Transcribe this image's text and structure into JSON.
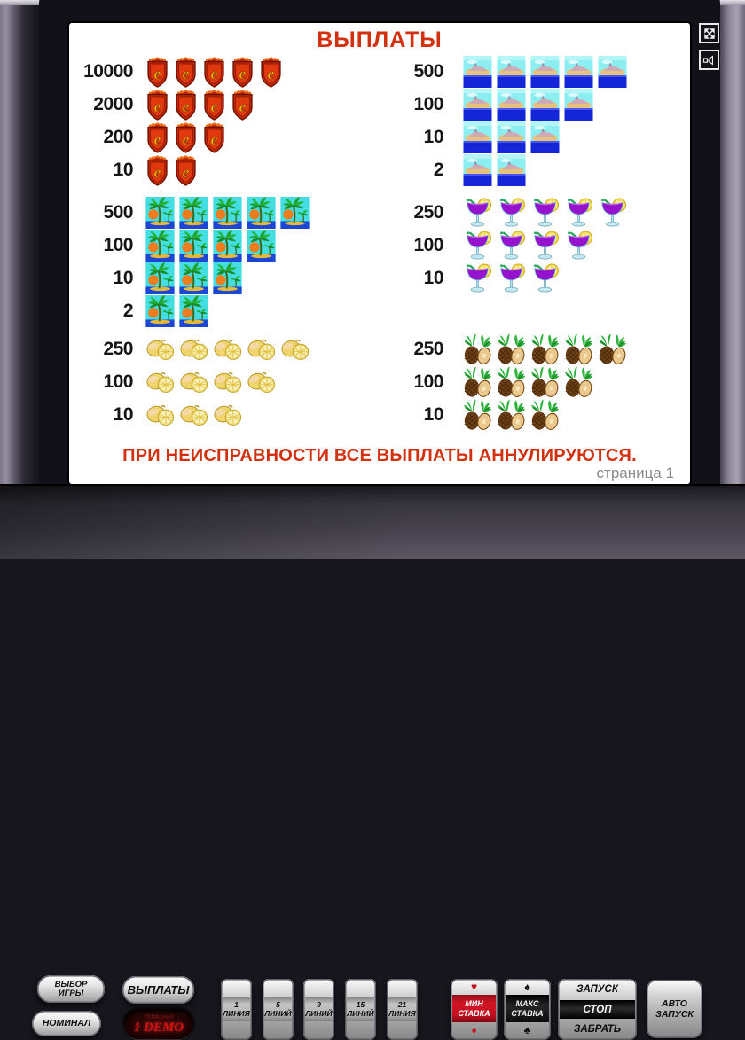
{
  "screen": {
    "title": "ВЫПЛАТЫ",
    "warning": "ПРИ НЕИСПРАВНОСТИ ВСЕ ВЫПЛАТЫ АННУЛИРУЮТСЯ.",
    "page": "страница 1"
  },
  "colors": {
    "accent_red": "#d23110",
    "display_red": "#d01212",
    "min_bet_band_red": "#c41220",
    "max_bet_band_black": "#111111"
  },
  "paytable": {
    "groups": [
      {
        "symbol": "badge",
        "symbol_desc": "red shield crest with letter e",
        "rows": [
          {
            "value": "10000",
            "count": 5
          },
          {
            "value": "2000",
            "count": 4
          },
          {
            "value": "200",
            "count": 3
          },
          {
            "value": "10",
            "count": 2
          }
        ]
      },
      {
        "symbol": "island",
        "symbol_desc": "island and sea picture",
        "rows": [
          {
            "value": "500",
            "count": 5
          },
          {
            "value": "100",
            "count": 4
          },
          {
            "value": "10",
            "count": 3
          },
          {
            "value": "2",
            "count": 2
          }
        ]
      },
      {
        "symbol": "palm",
        "symbol_desc": "palm trees with sun picture",
        "rows": [
          {
            "value": "500",
            "count": 5
          },
          {
            "value": "100",
            "count": 4
          },
          {
            "value": "10",
            "count": 3
          },
          {
            "value": "2",
            "count": 2
          }
        ]
      },
      {
        "symbol": "cocktail",
        "symbol_desc": "purple cocktail with lemon slice",
        "rows": [
          {
            "value": "250",
            "count": 5
          },
          {
            "value": "100",
            "count": 4
          },
          {
            "value": "10",
            "count": 3
          }
        ]
      },
      {
        "symbol": "lemon",
        "symbol_desc": "cut lemons",
        "rows": [
          {
            "value": "250",
            "count": 5
          },
          {
            "value": "100",
            "count": 4
          },
          {
            "value": "10",
            "count": 3
          }
        ]
      },
      {
        "symbol": "pineapple",
        "symbol_desc": "pineapples",
        "rows": [
          {
            "value": "250",
            "count": 5
          },
          {
            "value": "100",
            "count": 4
          },
          {
            "value": "10",
            "count": 3
          }
        ]
      }
    ]
  },
  "window_icons": [
    {
      "name": "fullscreen-toggle",
      "glyph": "expand-arrows"
    },
    {
      "name": "sound-toggle",
      "glyph": "speaker"
    }
  ],
  "panel": {
    "game_select": {
      "line1": "ВЫБОР",
      "line2": "ИГРЫ"
    },
    "denomination": {
      "label": "НОМИНАЛ"
    },
    "payouts": {
      "label": "ВЫПЛАТЫ"
    },
    "display": {
      "label": "Номинал",
      "value": "1 DEMO"
    },
    "lines": [
      {
        "number": "1",
        "word": "ЛИНИЯ"
      },
      {
        "number": "5",
        "word": "ЛИНИЙ"
      },
      {
        "number": "9",
        "word": "ЛИНИЙ"
      },
      {
        "number": "15",
        "word": "ЛИНИЙ"
      },
      {
        "number": "21",
        "word": "ЛИНИЯ"
      }
    ],
    "min_bet": {
      "line1": "МИН",
      "line2": "СТАВКА",
      "suit_top": "♥",
      "suit_bottom": "♦"
    },
    "max_bet": {
      "line1": "МАКС",
      "line2": "СТАВКА",
      "suit_top": "♠",
      "suit_bottom": "♣"
    },
    "start": {
      "line1": "ЗАПУСК",
      "line2": "СТОП",
      "line3": "ЗАБРАТЬ"
    },
    "auto_start": {
      "line1": "АВТО",
      "line2": "ЗАПУСК"
    }
  }
}
